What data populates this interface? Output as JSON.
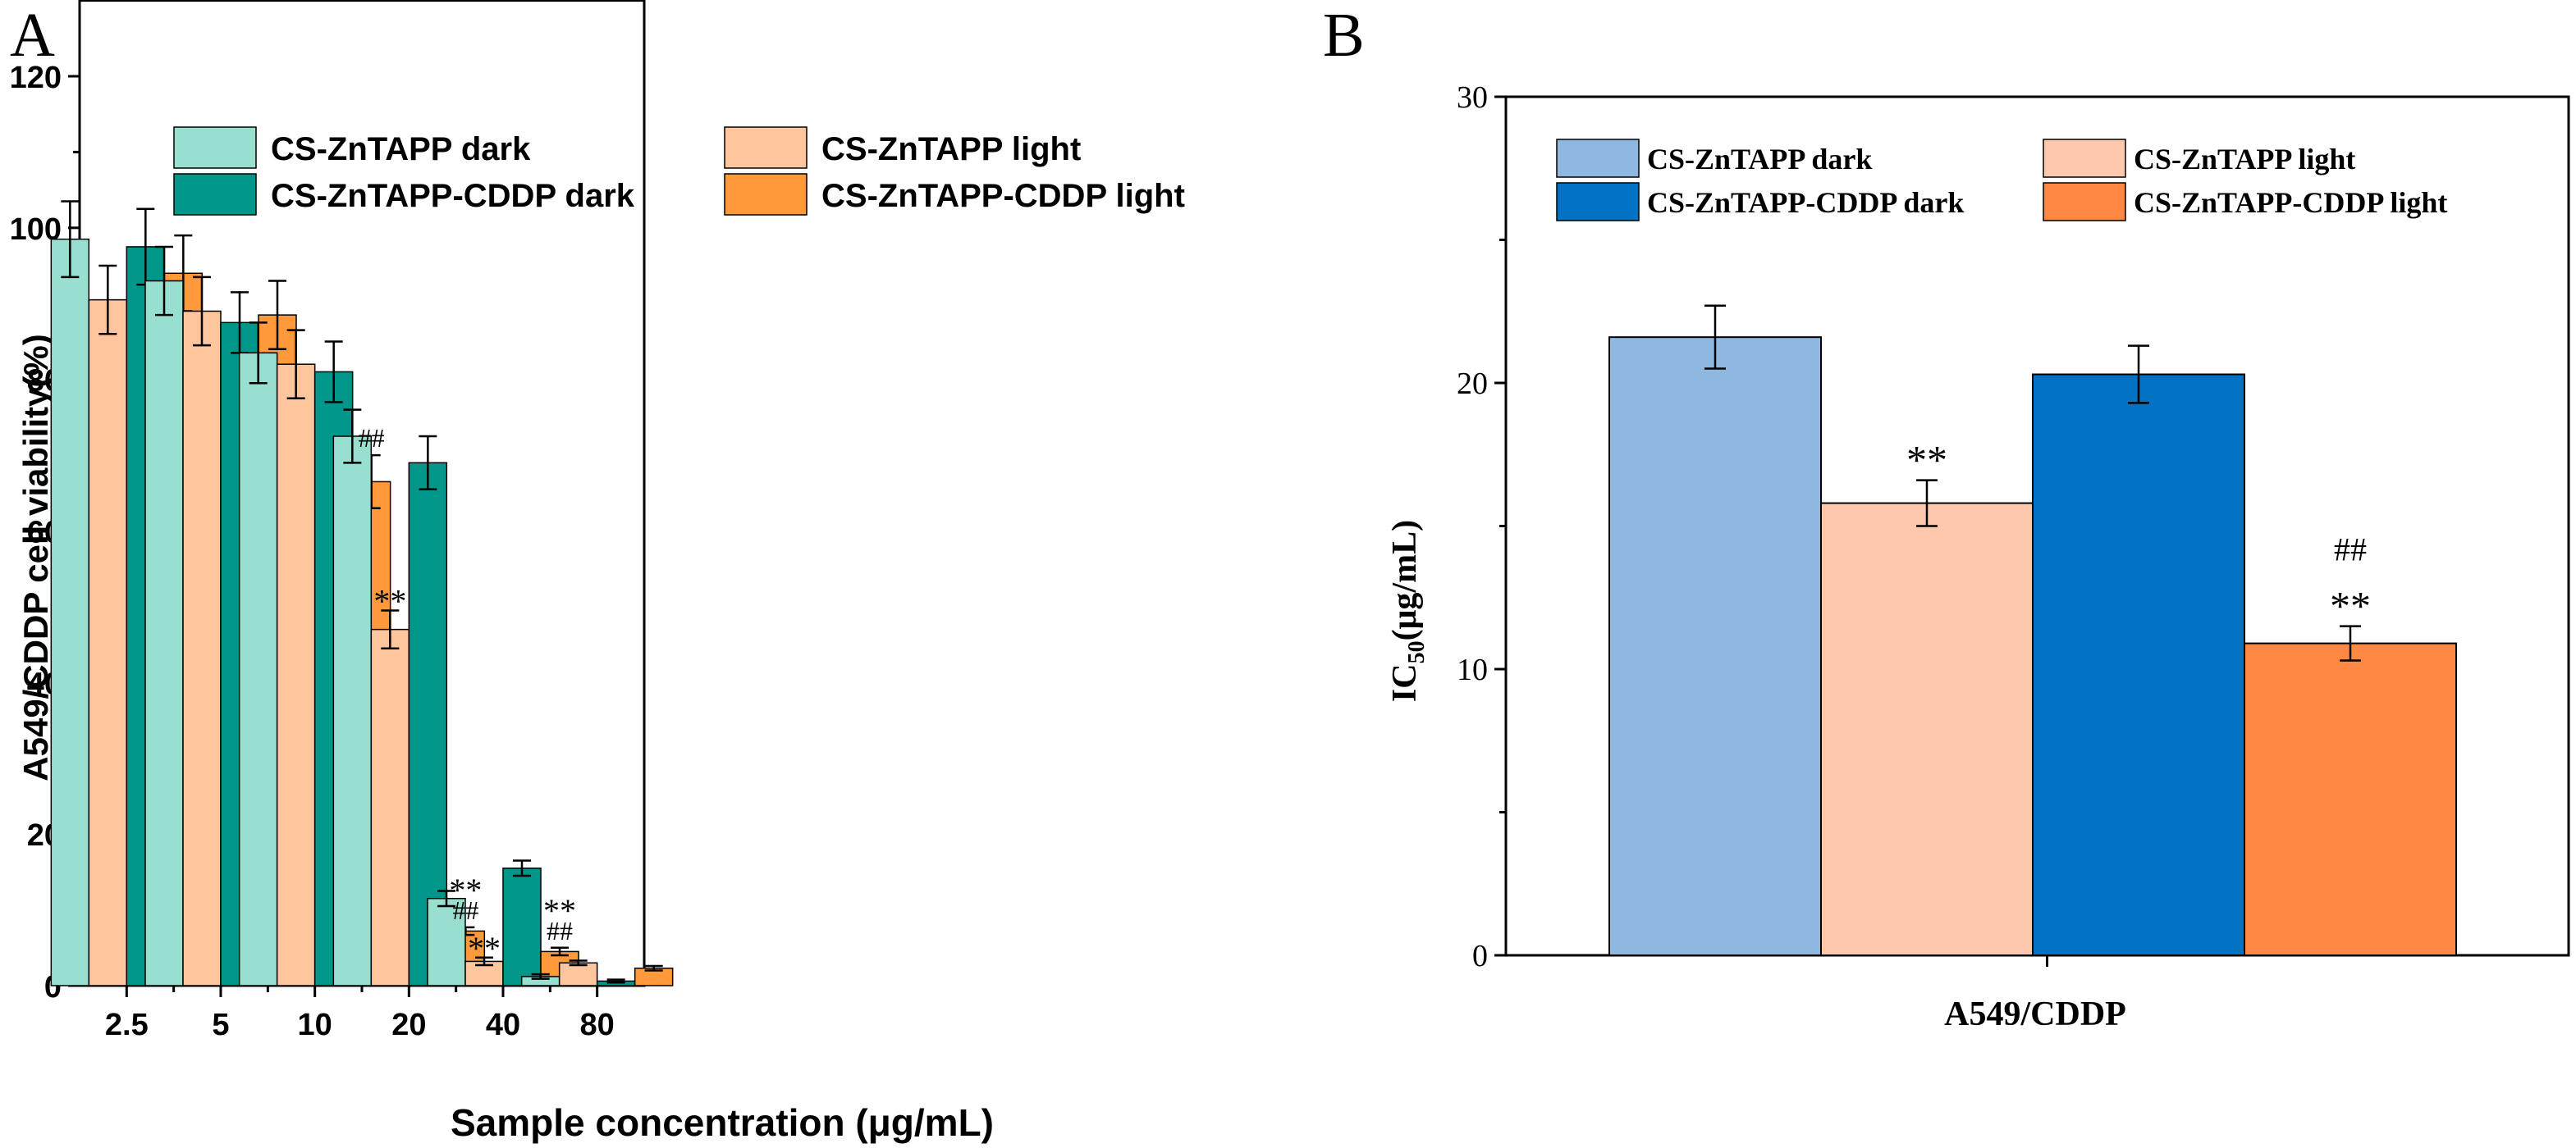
{
  "figure": {
    "panel_a_letter": "A",
    "panel_b_letter": "B"
  },
  "colors": {
    "a_dark": "#99dfcf",
    "a_light": "#ffc59d",
    "a_cddp_dark": "#00978a",
    "a_cddp_light": "#ff9a3c",
    "b_dark": "#8fb8e1",
    "b_light": "#ffc9ad",
    "b_cddp_dark": "#0172c4",
    "b_cddp_light": "#ff8844"
  },
  "chart_data": [
    {
      "type": "bar",
      "panel": "A",
      "title": "",
      "xlabel": "Sample concentration (μg/mL)",
      "ylabel": "A549/CDDP cell viability(%)",
      "ylim": [
        0,
        130
      ],
      "yticks": [
        "0",
        "20",
        "40",
        "60",
        "80",
        "100",
        "120"
      ],
      "categories": [
        "2.5",
        "5",
        "10",
        "20",
        "40",
        "80"
      ],
      "series": [
        {
          "name": "CS-ZnTAPP  dark",
          "color_key": "a_dark",
          "values": [
            98.5,
            93,
            83.5,
            72.5,
            11.5,
            1.2
          ],
          "errors": [
            5,
            4.5,
            4,
            3.5,
            1,
            0.3
          ]
        },
        {
          "name": "CS-ZnTAPP  light",
          "color_key": "a_light",
          "values": [
            90.5,
            89,
            82,
            47,
            3.2,
            3
          ],
          "errors": [
            4.5,
            4.5,
            4.5,
            2.5,
            0.5,
            0.3
          ]
        },
        {
          "name": "CS-ZnTAPP-CDDP  dark",
          "color_key": "a_cddp_dark",
          "values": [
            97.5,
            87.5,
            81,
            69,
            15.5,
            0.6
          ],
          "errors": [
            5,
            4,
            4,
            3.5,
            1,
            0.2
          ]
        },
        {
          "name": "CS-ZnTAPP-CDDP  light",
          "color_key": "a_cddp_light",
          "values": [
            94,
            88.5,
            66.5,
            7.2,
            4.5,
            2.3
          ],
          "errors": [
            5,
            4.5,
            3.5,
            0.5,
            0.5,
            0.3
          ]
        }
      ],
      "annotations": [
        {
          "text": "##",
          "category": 2,
          "series": 3
        },
        {
          "text": "**",
          "category": 3,
          "series": 1
        },
        {
          "text": "**",
          "category": 3,
          "series": 3,
          "stack": 2
        },
        {
          "text": "##",
          "category": 3,
          "series": 3,
          "stack": 1
        },
        {
          "text": "**",
          "category": 4,
          "series": 1
        },
        {
          "text": "**",
          "category": 4,
          "series": 3,
          "stack": 2
        },
        {
          "text": "##",
          "category": 4,
          "series": 3,
          "stack": 1
        }
      ]
    },
    {
      "type": "bar",
      "panel": "B",
      "title": "",
      "xlabel": "A549/CDDP",
      "ylabel_main": "IC",
      "ylabel_sub": "50",
      "ylabel_unit": "(μg/mL)",
      "ylim": [
        0,
        30
      ],
      "yticks": [
        "0",
        "10",
        "20",
        "30"
      ],
      "categories": [
        "A549/CDDP"
      ],
      "series": [
        {
          "name": "CS-ZnTAPP dark",
          "color_key": "b_dark",
          "values": [
            21.6
          ],
          "errors": [
            1.1
          ]
        },
        {
          "name": "CS-ZnTAPP light",
          "color_key": "b_light",
          "values": [
            15.8
          ],
          "errors": [
            0.8
          ]
        },
        {
          "name": "CS-ZnTAPP-CDDP dark",
          "color_key": "b_cddp_dark",
          "values": [
            20.3
          ],
          "errors": [
            1.0
          ]
        },
        {
          "name": "CS-ZnTAPP-CDDP light",
          "color_key": "b_cddp_light",
          "values": [
            10.9
          ],
          "errors": [
            0.6
          ]
        }
      ],
      "annotations": [
        {
          "text": "**",
          "series": 1
        },
        {
          "text": "##",
          "series": 3,
          "stack": 2
        },
        {
          "text": "**",
          "series": 3,
          "stack": 1
        }
      ]
    }
  ]
}
